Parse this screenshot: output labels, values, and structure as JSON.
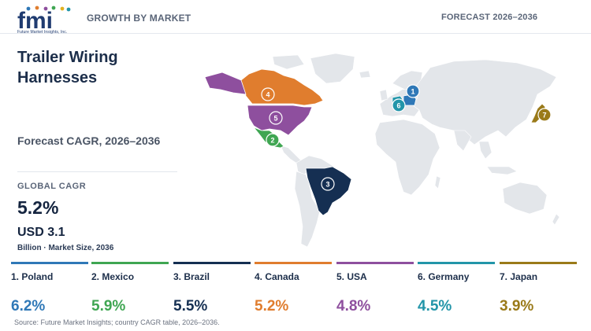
{
  "header": {
    "logo_text": "fmi",
    "logo_tagline": "Future Market Insights, Inc.",
    "title": "GROWTH BY MARKET",
    "right_label": "FORECAST 2026–2036"
  },
  "report": {
    "title": "Trailer Wiring Harnesses",
    "subtitle": "Forecast CAGR, 2026–2036",
    "global_cagr_label": "GLOBAL CAGR",
    "global_cagr_value": "5.2%",
    "market_size_value": "USD 3.1",
    "market_size_caption": "Billion · Market Size, 2036"
  },
  "map": {
    "markers": [
      {
        "rank": "1",
        "country": "Poland",
        "color": "#2f78b7"
      },
      {
        "rank": "2",
        "country": "Mexico",
        "color": "#3fa652"
      },
      {
        "rank": "3",
        "country": "Brazil",
        "color": "#152f52"
      },
      {
        "rank": "4",
        "country": "Canada",
        "color": "#e07d2e"
      },
      {
        "rank": "5",
        "country": "USA",
        "color": "#8e4f9e"
      },
      {
        "rank": "6",
        "country": "Germany",
        "color": "#2295a9"
      },
      {
        "rank": "7",
        "country": "Japan",
        "color": "#9a7a19"
      }
    ],
    "base_land_color": "#e3e6ea"
  },
  "cards": [
    {
      "label": "1. Poland",
      "value": "6.2%",
      "color": "#2f78b7"
    },
    {
      "label": "2. Mexico",
      "value": "5.9%",
      "color": "#3fa652"
    },
    {
      "label": "3. Brazil",
      "value": "5.5%",
      "color": "#152f52"
    },
    {
      "label": "4. Canada",
      "value": "5.2%",
      "color": "#e07d2e"
    },
    {
      "label": "5. USA",
      "value": "4.8%",
      "color": "#8e4f9e"
    },
    {
      "label": "6. Germany",
      "value": "4.5%",
      "color": "#2295a9"
    },
    {
      "label": "7. Japan",
      "value": "3.9%",
      "color": "#9a7a19"
    }
  ],
  "source": "Source: Future Market Insights; country CAGR table, 2026–2036."
}
